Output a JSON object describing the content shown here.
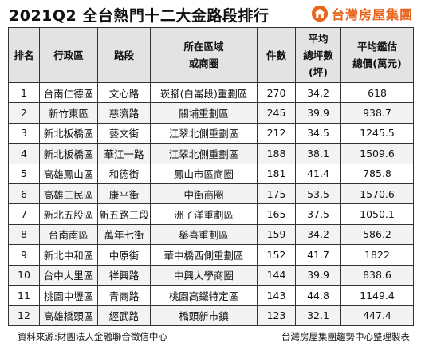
{
  "title": "2021Q2 全台熱門十二大金路段排行",
  "brand": {
    "name": "台灣房屋集團",
    "logo_icon": "house-logo-icon",
    "color": "#e8651d"
  },
  "table": {
    "headers": {
      "rank": "排名",
      "district": "行政區",
      "road": "路段",
      "area_line1": "所在區域",
      "area_line2": "或商圈",
      "count": "件數",
      "ppp_line1": "平均",
      "ppp_line2": "總坪數",
      "ppp_line3": "(坪)",
      "price_line1": "平均鑑估",
      "price_line2": "總價(萬元)"
    },
    "rows": [
      {
        "rank": "1",
        "district": "台南仁德區",
        "road": "文心路",
        "area": "崁腳(白崙段)重劃區",
        "count": "270",
        "avg_ping": "34.2",
        "avg_price": "618"
      },
      {
        "rank": "2",
        "district": "新竹東區",
        "road": "慈濟路",
        "area": "關埔重劃區",
        "count": "245",
        "avg_ping": "39.9",
        "avg_price": "938.7"
      },
      {
        "rank": "3",
        "district": "新北板橋區",
        "road": "藝文街",
        "area": "江翠北側重劃區",
        "count": "212",
        "avg_ping": "34.5",
        "avg_price": "1245.5"
      },
      {
        "rank": "4",
        "district": "新北板橋區",
        "road": "華江一路",
        "area": "江翠北側重劃區",
        "count": "188",
        "avg_ping": "38.1",
        "avg_price": "1509.6"
      },
      {
        "rank": "5",
        "district": "高雄鳳山區",
        "road": "和德街",
        "area": "鳳山市區商圈",
        "count": "181",
        "avg_ping": "41.4",
        "avg_price": "785.8"
      },
      {
        "rank": "6",
        "district": "高雄三民區",
        "road": "康平街",
        "area": "中街商圈",
        "count": "175",
        "avg_ping": "53.5",
        "avg_price": "1570.6"
      },
      {
        "rank": "7",
        "district": "新北五股區",
        "road": "新五路三段",
        "area": "洲子洋重劃區",
        "count": "165",
        "avg_ping": "37.5",
        "avg_price": "1050.1"
      },
      {
        "rank": "8",
        "district": "台南南區",
        "road": "萬年七街",
        "area": "舉喜重劃區",
        "count": "159",
        "avg_ping": "34.2",
        "avg_price": "586.2"
      },
      {
        "rank": "9",
        "district": "新北中和區",
        "road": "中原街",
        "area": "華中橋西側重劃區",
        "count": "152",
        "avg_ping": "41.7",
        "avg_price": "1822"
      },
      {
        "rank": "10",
        "district": "台中大里區",
        "road": "祥興路",
        "area": "中興大學商圈",
        "count": "144",
        "avg_ping": "39.9",
        "avg_price": "838.6"
      },
      {
        "rank": "11",
        "district": "桃園中壢區",
        "road": "青商路",
        "area": "桃園高鐵特定區",
        "count": "143",
        "avg_ping": "44.8",
        "avg_price": "1149.4"
      },
      {
        "rank": "12",
        "district": "高雄橋頭區",
        "road": "經武路",
        "area": "橋頭新市鎮",
        "count": "123",
        "avg_ping": "32.1",
        "avg_price": "447.4"
      }
    ]
  },
  "footer": {
    "source": "資料來源:財團法人金融聯合徵信中心",
    "credit": "台灣房屋集團趨勢中心整理製表"
  }
}
